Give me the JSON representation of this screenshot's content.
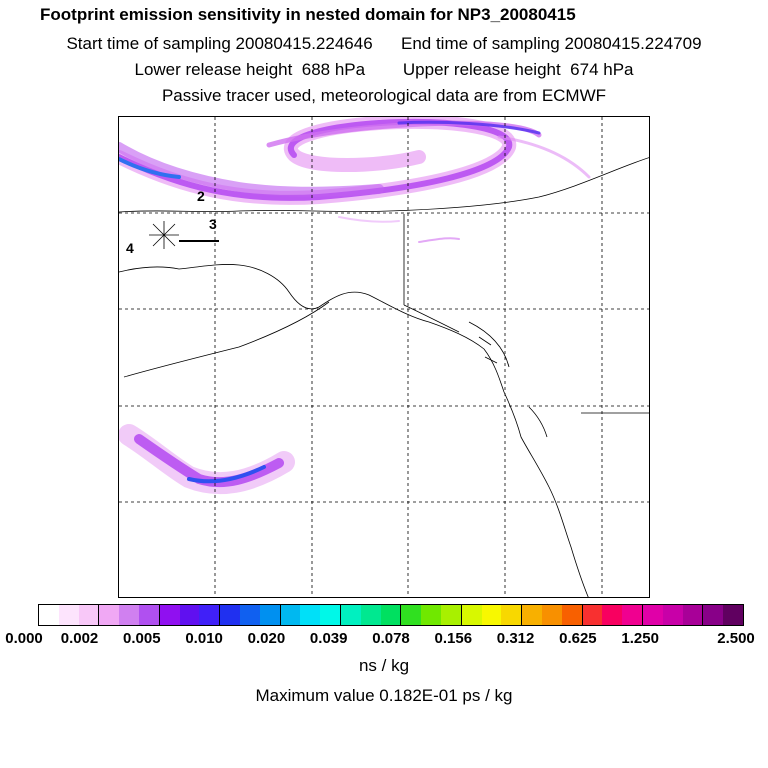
{
  "header": {
    "title": "Footprint emission sensitivity in nested domain for NP3_20080415",
    "line2": "Start time of sampling 20080415.224646      End time of sampling 20080415.224709",
    "line3": "Lower release height  688 hPa        Upper release height  674 hPa",
    "line4": "Passive tracer used, meteorological data are from ECMWF"
  },
  "map": {
    "track_labels": [
      "2",
      "3",
      "4"
    ]
  },
  "colorbar": {
    "colors": [
      "#ffffff",
      "#fde4fd",
      "#f8c8f8",
      "#f0a8f4",
      "#d080f0",
      "#b050f0",
      "#9010f0",
      "#6010f0",
      "#4020f8",
      "#2030f0",
      "#1060f0",
      "#0090f0",
      "#00b8f0",
      "#00e0f8",
      "#00f8e8",
      "#00f0c0",
      "#00e890",
      "#00e060",
      "#30e020",
      "#70e800",
      "#a8f000",
      "#d8f800",
      "#f8f800",
      "#f8d800",
      "#f8b000",
      "#f89000",
      "#f86000",
      "#f83030",
      "#f80060",
      "#f00090",
      "#e000a8",
      "#c800a8",
      "#a80098",
      "#880088",
      "#600060"
    ],
    "tick_labels": [
      "0.000",
      "0.002",
      "0.005",
      "0.010",
      "0.020",
      "0.039",
      "0.078",
      "0.156",
      "0.312",
      "0.625",
      "1.250",
      "2.500"
    ],
    "unit": "ns / kg"
  },
  "max_value_text": "Maximum value  0.182E-01 ps / kg"
}
